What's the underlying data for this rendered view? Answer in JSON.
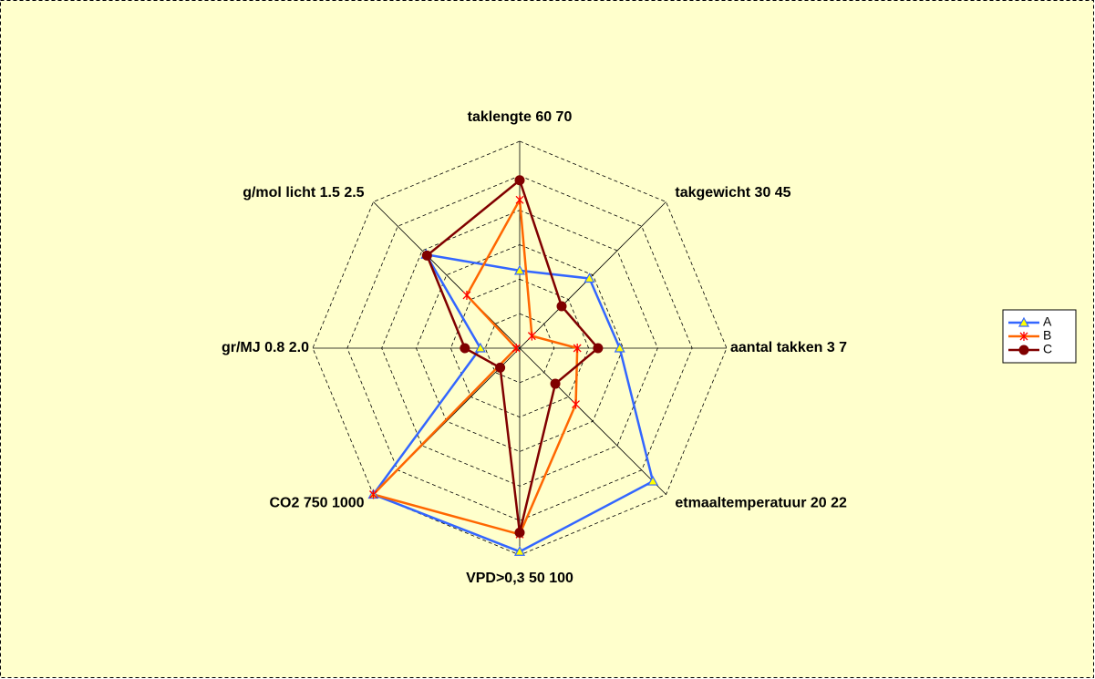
{
  "chart_data": {
    "type": "radar",
    "axes": [
      "taklengte 60 70",
      "takgewicht 30 45",
      "aantal takken 3 7",
      "etmaaltemperatuur 20 22",
      "VPD>0,3 50 100",
      "CO2 750 1000",
      "gr/MJ 0.8 2.0",
      "g/mol licht 1.5 2.5"
    ],
    "series": [
      {
        "name": "A",
        "color": "#3366ff",
        "marker": "triangle",
        "values": [
          2.25,
          2.86,
          2.9,
          5.46,
          5.9,
          6.0,
          1.14,
          3.84
        ]
      },
      {
        "name": "B",
        "color": "#ff6600",
        "marker": "star",
        "values": [
          4.3,
          0.5,
          1.67,
          2.3,
          5.4,
          6.0,
          0.1,
          2.17
        ]
      },
      {
        "name": "C",
        "color": "#800000",
        "marker": "circle",
        "values": [
          4.87,
          1.72,
          2.27,
          1.46,
          5.35,
          0.8,
          1.59,
          3.8
        ]
      }
    ],
    "rlim": [
      0,
      6
    ],
    "rticks": [
      1,
      2,
      3,
      4,
      5,
      6
    ],
    "tick_labels": false,
    "grid": true,
    "legend": "right"
  }
}
